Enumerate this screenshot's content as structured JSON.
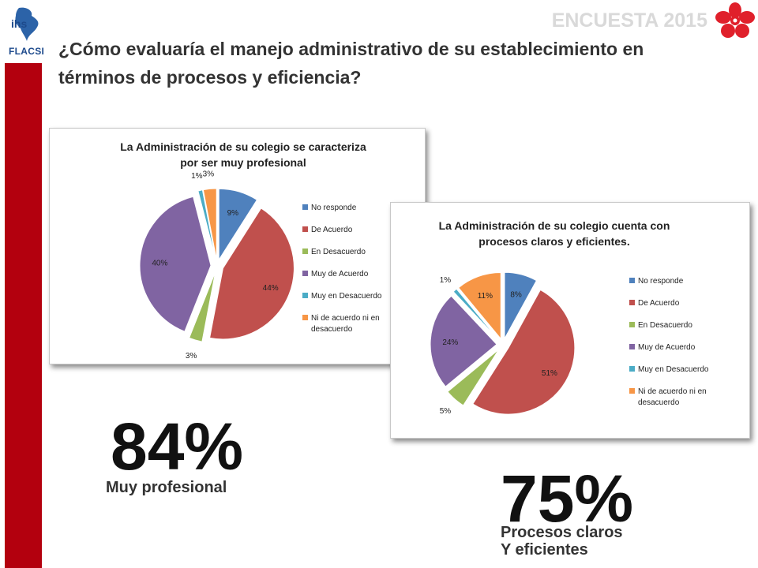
{
  "header": {
    "logo_top": "ihs",
    "logo_bottom": "FLACSI",
    "survey_label": "ENCUESTA 2015",
    "question": "¿Cómo evaluaría el manejo administrativo de su establecimiento en términos de procesos y eficiencia?"
  },
  "colors": {
    "accent_red": "#b3000e",
    "slice_no_responde": "#4f81bd",
    "slice_de_acuerdo": "#c0504d",
    "slice_en_desacuerdo": "#9bbb59",
    "slice_muy_de_acuerdo": "#8064a2",
    "slice_muy_en_desacuerdo": "#4bacc6",
    "slice_ni": "#f79646"
  },
  "chart_data": [
    {
      "type": "pie",
      "title": "La Administración de su colegio se caracteriza por ser muy profesional",
      "categories": [
        "No responde",
        "De Acuerdo",
        "En Desacuerdo",
        "Muy de Acuerdo",
        "Muy en Desacuerdo",
        "Ni de acuerdo ni en desacuerdo"
      ],
      "values": [
        9,
        44,
        3,
        40,
        1,
        3
      ],
      "data_labels": [
        "9%",
        "44%",
        "3%",
        "40%",
        "1%",
        "3%"
      ],
      "legend": [
        "No responde",
        "De Acuerdo",
        "En Desacuerdo",
        "Muy de Acuerdo",
        "Muy en Desacuerdo",
        "Ni de acuerdo ni en desacuerdo"
      ],
      "legend_position": "right",
      "exploded": true
    },
    {
      "type": "pie",
      "title": "La Administración de su colegio cuenta con procesos claros y eficientes.",
      "categories": [
        "No responde",
        "De Acuerdo",
        "En Desacuerdo",
        "Muy de Acuerdo",
        "Muy en Desacuerdo",
        "Ni de acuerdo ni en desacuerdo"
      ],
      "values": [
        8,
        51,
        5,
        24,
        1,
        11
      ],
      "data_labels": [
        "8%",
        "51%",
        "5%",
        "24%",
        "1%",
        "11%"
      ],
      "legend": [
        "No responde",
        "De Acuerdo",
        "En Desacuerdo",
        "Muy de Acuerdo",
        "Muy en Desacuerdo",
        "Ni de acuerdo ni en desacuerdo"
      ],
      "legend_position": "right",
      "exploded": true
    }
  ],
  "highlights": [
    {
      "value": "84%",
      "caption_line1": "Muy profesional",
      "caption_line2": ""
    },
    {
      "value": "75%",
      "caption_line1": "Procesos claros",
      "caption_line2": "Y eficientes"
    }
  ]
}
